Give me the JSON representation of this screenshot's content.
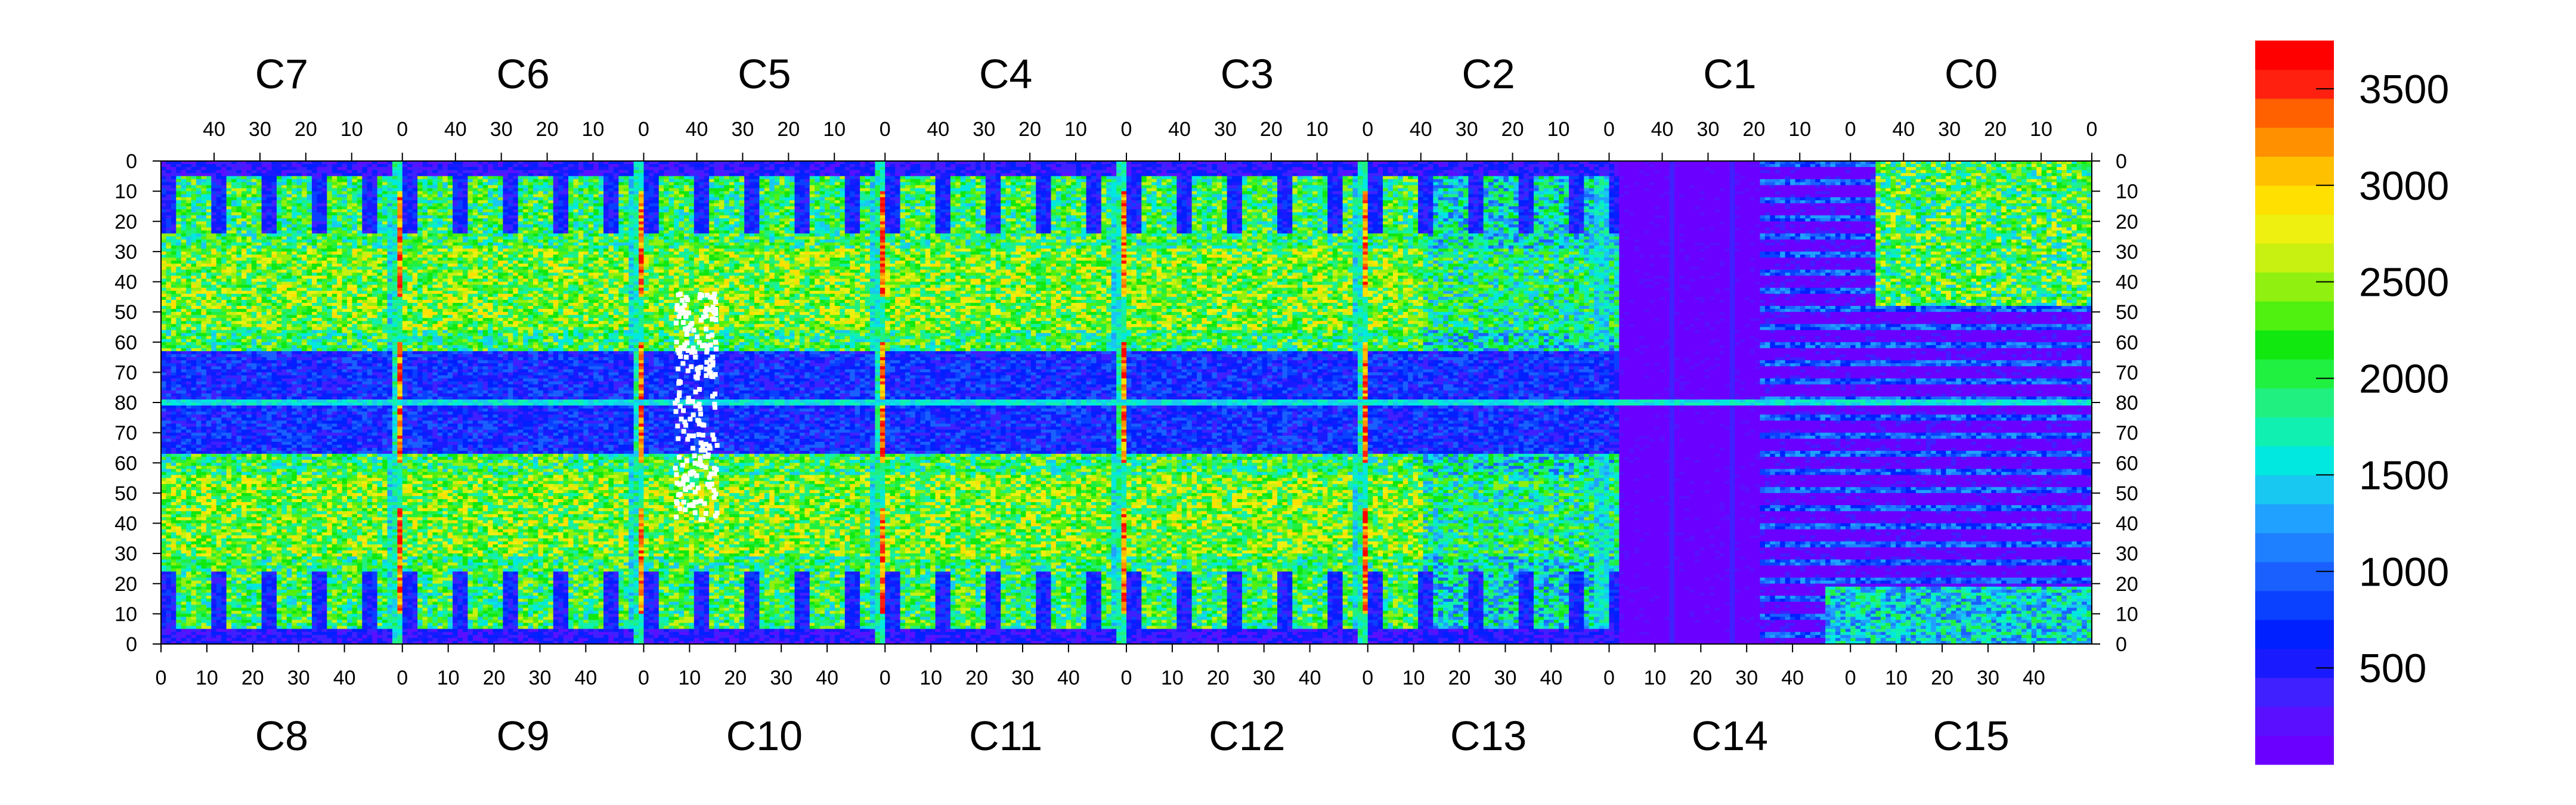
{
  "chart_data": {
    "type": "heatmap",
    "title": "",
    "xlabel": "",
    "ylabel": "",
    "top_chip_labels": [
      "C7",
      "C6",
      "C5",
      "C4",
      "C3",
      "C2",
      "C1",
      "C0"
    ],
    "bottom_chip_labels": [
      "C8",
      "C9",
      "C10",
      "C11",
      "C12",
      "C13",
      "C14",
      "C15"
    ],
    "top_x_ticks": [
      "40",
      "30",
      "20",
      "10",
      "0"
    ],
    "bottom_x_ticks": [
      "0",
      "10",
      "20",
      "30",
      "40"
    ],
    "y_ticks_left": [
      "0",
      "10",
      "20",
      "30",
      "40",
      "50",
      "60",
      "70",
      "80",
      "70",
      "60",
      "50",
      "40",
      "30",
      "20",
      "10",
      "0"
    ],
    "y_ticks_right": [
      "0",
      "10",
      "20",
      "30",
      "40",
      "50",
      "60",
      "70",
      "80",
      "70",
      "60",
      "50",
      "40",
      "30",
      "20",
      "10",
      "0"
    ],
    "color_scale": {
      "min": 0,
      "max": 3750,
      "tick_values": [
        500,
        1000,
        1500,
        2000,
        2500,
        3000,
        3500
      ],
      "tick_labels": [
        "500",
        "1000",
        "1500",
        "2000",
        "2500",
        "3000",
        "3500"
      ],
      "palette": [
        "#6a00ff",
        "#5a10ff",
        "#4020ff",
        "#1a1aff",
        "#0020ff",
        "#0a40ff",
        "#1a60ff",
        "#1f80ff",
        "#20a0ff",
        "#18c8f0",
        "#00e8e0",
        "#10f0b0",
        "#20f080",
        "#20f040",
        "#10e810",
        "#50f010",
        "#90f010",
        "#c8f010",
        "#eef010",
        "#ffe000",
        "#ffc000",
        "#ff9000",
        "#ff6000",
        "#ff2010",
        "#ff0000"
      ]
    }
  }
}
